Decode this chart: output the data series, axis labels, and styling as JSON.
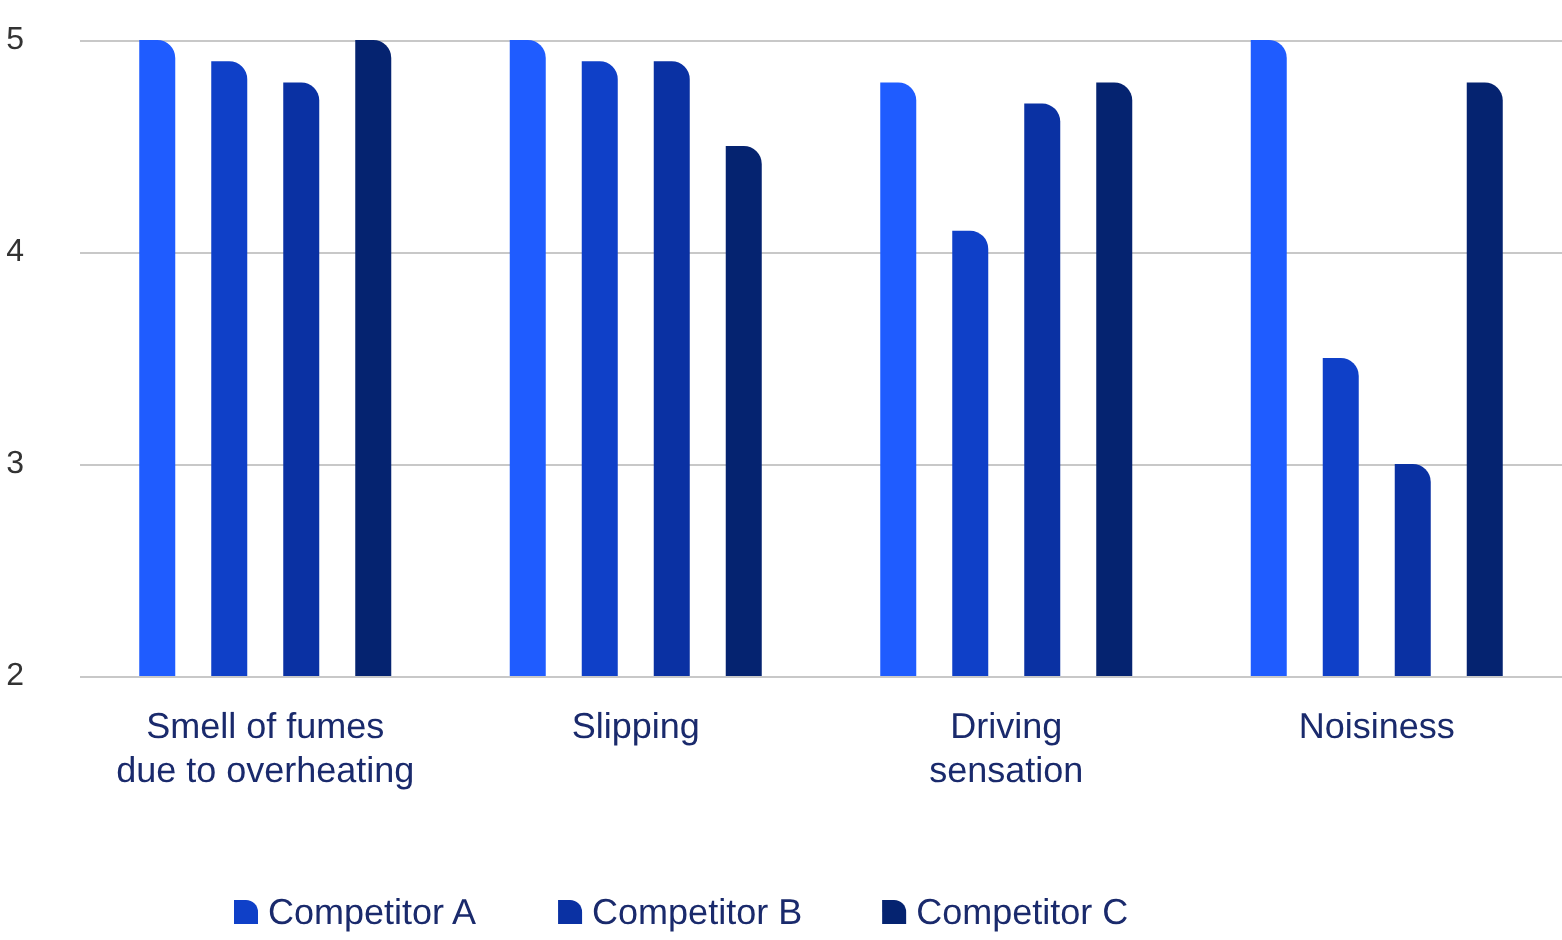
{
  "chart_data": {
    "type": "bar",
    "categories": [
      "Smell of fumes\ndue to overheating",
      "Slipping",
      "Driving\nsensation",
      "Noisiness"
    ],
    "series": [
      {
        "color": "#1f5cff",
        "values": [
          5,
          5,
          4.8,
          5
        ]
      },
      {
        "name": "Competitor A",
        "color": "#0f40c8",
        "values": [
          4.9,
          4.9,
          4.1,
          3.5
        ]
      },
      {
        "name": "Competitor B",
        "color": "#0a31a3",
        "values": [
          4.8,
          4.9,
          4.7,
          3.0
        ]
      },
      {
        "name": "Competitor C",
        "color": "#052370",
        "values": [
          5,
          4.5,
          4.8,
          4.8
        ]
      }
    ],
    "ylim": [
      2,
      5
    ],
    "yticks": [
      2,
      3,
      4,
      5
    ],
    "grid": "y",
    "legend": "bottom left"
  }
}
